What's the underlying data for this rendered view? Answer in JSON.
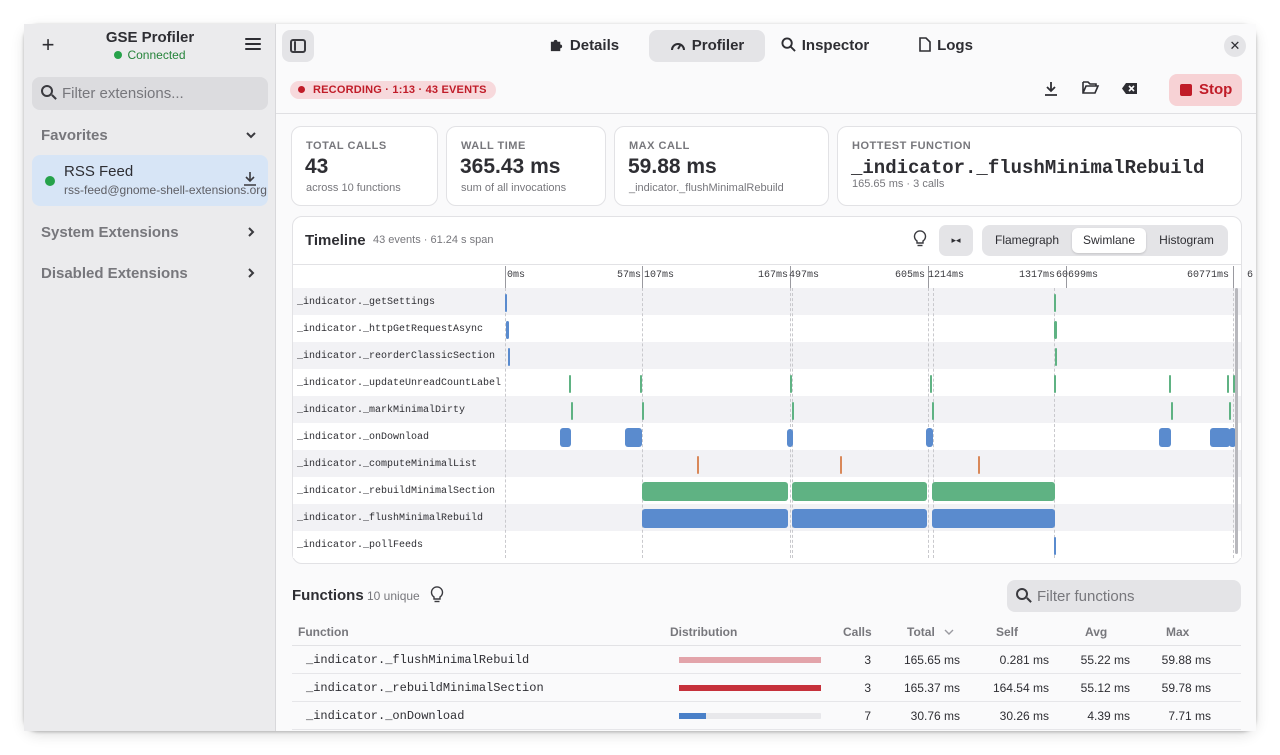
{
  "sidebar": {
    "title": "GSE Profiler",
    "status": "Connected",
    "search_placeholder": "Filter extensions...",
    "favorites_label": "Favorites",
    "favorite_item": {
      "name": "RSS Feed",
      "uuid": "rss-feed@gnome-shell-extensions.org"
    },
    "system_label": "System Extensions",
    "disabled_label": "Disabled Extensions"
  },
  "tabs": [
    {
      "label": "Details",
      "icon": "puzzle-icon"
    },
    {
      "label": "Profiler",
      "icon": "gauge-icon",
      "active": true
    },
    {
      "label": "Inspector",
      "icon": "search-icon"
    },
    {
      "label": "Logs",
      "icon": "file-icon"
    }
  ],
  "toolbar": {
    "recording": "RECORDING · 1:13 · 43 EVENTS",
    "stop_label": "Stop"
  },
  "stats": {
    "total_calls": {
      "label": "TOTAL CALLS",
      "value": "43",
      "sub": "across 10 functions"
    },
    "wall_time": {
      "label": "WALL TIME",
      "value": "365.43 ms",
      "sub": "sum of all invocations"
    },
    "max_call": {
      "label": "MAX CALL",
      "value": "59.88 ms",
      "sub": "_indicator._flushMinimalRebuild"
    },
    "hottest": {
      "label": "HOTTEST FUNCTION",
      "value": "_indicator._flushMinimalRebuild",
      "sub": "165.65 ms · 3 calls"
    }
  },
  "timeline": {
    "title": "Timeline",
    "meta": "43 events · 61.24 s span",
    "views": [
      "Flamegraph",
      "Swimlane",
      "Histogram"
    ],
    "active_view": "Swimlane",
    "axis_labels": [
      "0ms",
      "57ms",
      "107ms",
      "167ms",
      "497ms",
      "605ms",
      "1214ms",
      "1317ms",
      "60699ms",
      "60771ms",
      "6"
    ],
    "lanes": [
      "_indicator._getSettings",
      "_indicator._httpGetRequestAsync",
      "_indicator._reorderClassicSection",
      "_indicator._updateUnreadCountLabel",
      "_indicator._markMinimalDirty",
      "_indicator._onDownload",
      "_indicator._computeMinimalList",
      "_indicator._rebuildMinimalSection",
      "_indicator._flushMinimalRebuild",
      "_indicator._pollFeeds"
    ]
  },
  "functions": {
    "title": "Functions",
    "meta": "10 unique",
    "search_placeholder": "Filter functions",
    "columns": [
      "Function",
      "Distribution",
      "Calls",
      "Total",
      "Self",
      "Avg",
      "Max"
    ],
    "rows": [
      {
        "name": "_indicator._flushMinimalRebuild",
        "dist": 1.0,
        "dist_color": "#e3a4aa",
        "calls": "3",
        "total": "165.65 ms",
        "self": "0.281 ms",
        "avg": "55.22 ms",
        "max": "59.88 ms"
      },
      {
        "name": "_indicator._rebuildMinimalSection",
        "dist": 1.0,
        "dist_color": "#c6313b",
        "calls": "3",
        "total": "165.37 ms",
        "self": "164.54 ms",
        "avg": "55.12 ms",
        "max": "59.78 ms"
      },
      {
        "name": "_indicator._onDownload",
        "dist": 0.19,
        "dist_color": "#4a80c8",
        "calls": "7",
        "total": "30.76 ms",
        "self": "30.26 ms",
        "avg": "4.39 ms",
        "max": "7.71 ms"
      }
    ]
  }
}
